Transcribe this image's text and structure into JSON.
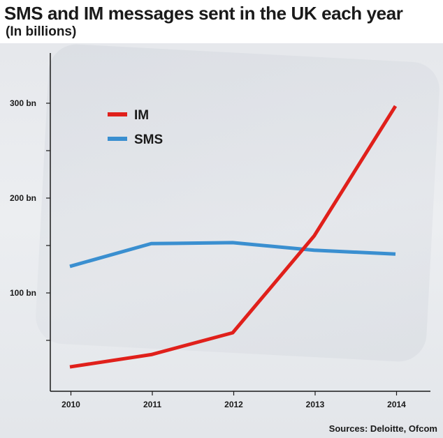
{
  "title": "SMS and IM messages sent in the UK each year",
  "subtitle": "(In billions)",
  "source": "Sources: Deloitte, Ofcom",
  "colors": {
    "im": "#e0201b",
    "sms": "#3a8fd0",
    "axis": "#1a1a1a"
  },
  "chart_data": {
    "type": "line",
    "x": [
      "2010",
      "2011",
      "2012",
      "2013",
      "2014"
    ],
    "series": [
      {
        "name": "IM",
        "values": [
          22,
          35,
          58,
          160,
          297
        ]
      },
      {
        "name": "SMS",
        "values": [
          128,
          152,
          153,
          145,
          141
        ]
      }
    ],
    "yticks": [
      300,
      200,
      100
    ],
    "ytick_labels": [
      "300 bn",
      "200 bn",
      "100 bn"
    ],
    "ylim": [
      0,
      330
    ],
    "grid": false,
    "legend_position": "top-left"
  }
}
